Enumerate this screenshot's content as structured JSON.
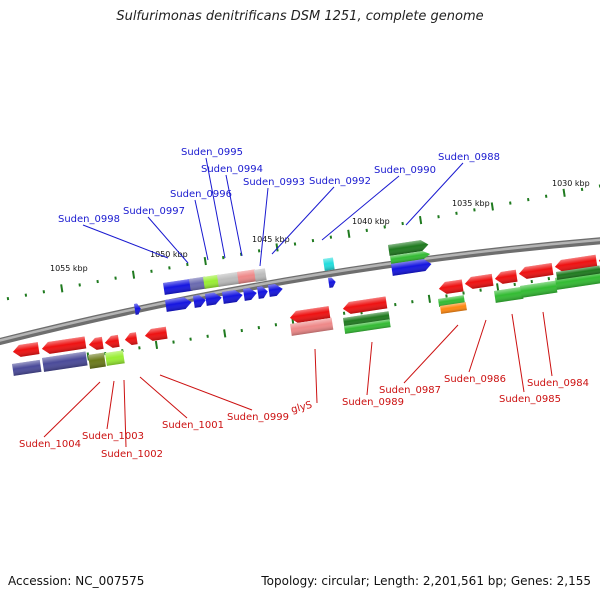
{
  "title": "Sulfurimonas denitrificans DSM 1251, complete genome",
  "accession": "Accession: NC_007575",
  "summary": "Topology: circular; Length: 2,201,561 bp; Genes: 2,155",
  "colors": {
    "backbone": "#8a8a8a",
    "tick": "#1f7a1f",
    "top_label": "#1a1ad0",
    "bottom_label": "#cc1111",
    "red_gene": "#ee1111",
    "blue_gene": "#1515e0",
    "green_gene": "#33bb33",
    "dark_green_gene": "#1f7a1f",
    "navy_gene": "#4a4a99",
    "olive_gene": "#6b7a1a",
    "lime_gene": "#99ee33",
    "cyan_gene": "#22dddd",
    "orange_gene": "#ff8811",
    "pink_gene": "#ee8888",
    "gray_gene": "#bbbbbb",
    "slate_gene": "#6a6ab0"
  },
  "scale_labels": [
    "1030 kbp",
    "1035 kbp",
    "1040 kbp",
    "1045 kbp",
    "1050 kbp",
    "1055 kbp"
  ],
  "top_genes": [
    "Suden_0988",
    "Suden_0990",
    "Suden_0992",
    "Suden_0993",
    "Suden_0994",
    "Suden_0995",
    "Suden_0996",
    "Suden_0997",
    "Suden_0998"
  ],
  "bottom_genes": [
    "Suden_0984",
    "Suden_0985",
    "Suden_0986",
    "Suden_0987",
    "Suden_0989",
    "glyS",
    "Suden_0999",
    "Suden_1001",
    "Suden_1002",
    "Suden_1003",
    "Suden_1004"
  ]
}
